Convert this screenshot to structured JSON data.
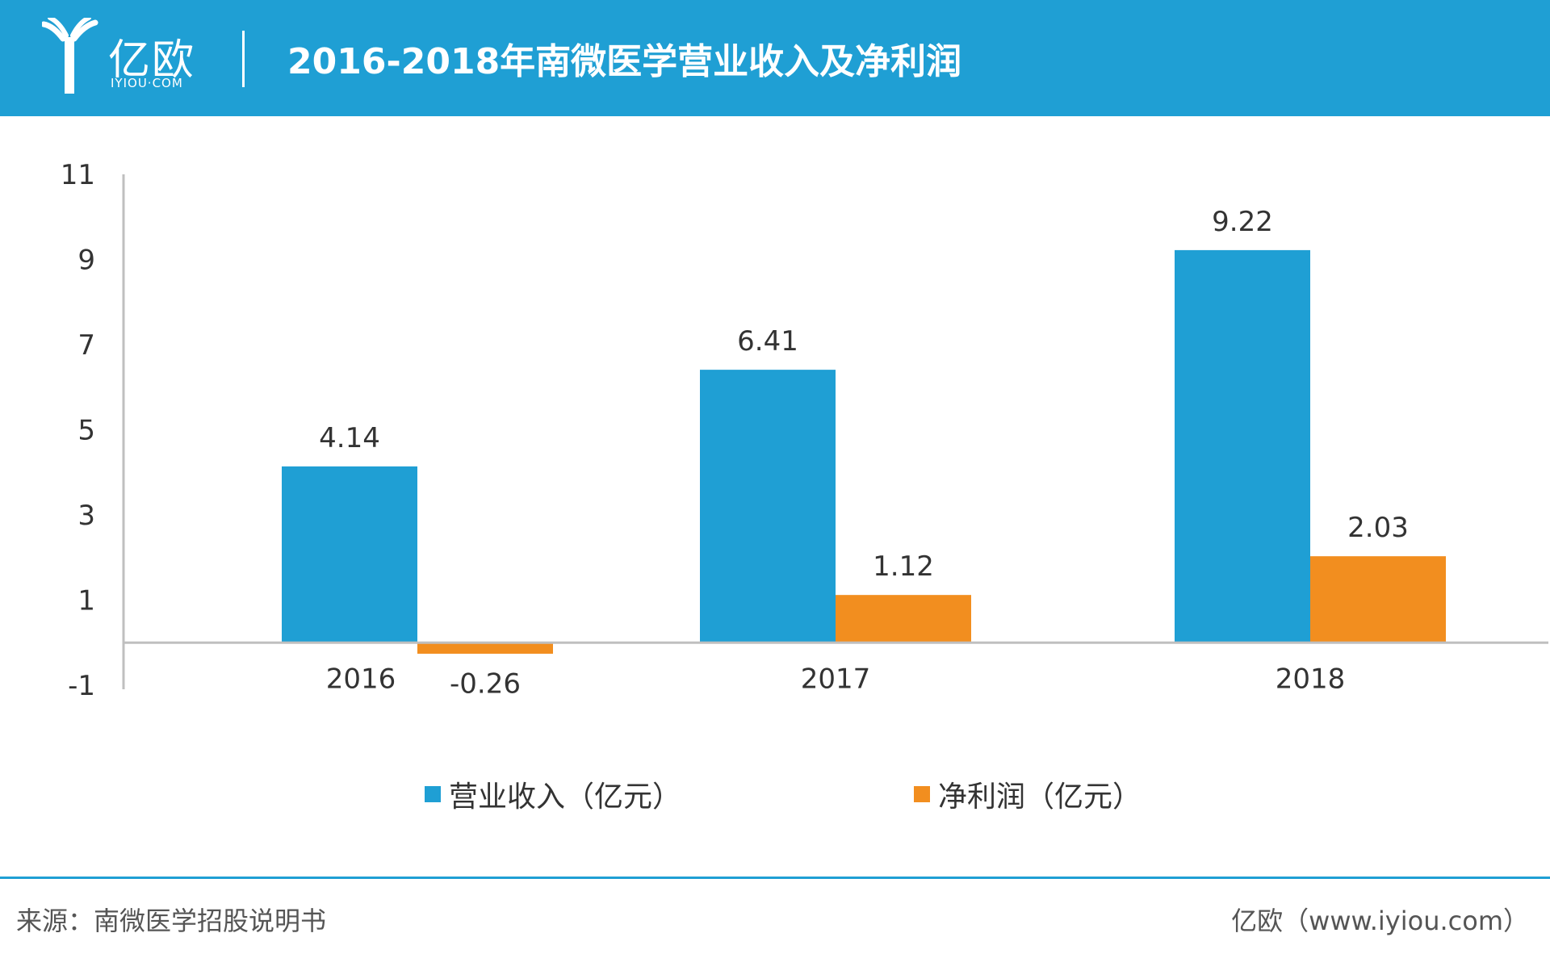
{
  "header": {
    "logo_cn": "亿欧",
    "logo_en": "IYIOU·COM",
    "title": "2016-2018年南微医学营业收入及净利润"
  },
  "colors": {
    "brand": "#1f9fd4",
    "revenue": "#1f9fd4",
    "profit": "#f28e1f",
    "axis": "#bfbfbf"
  },
  "chart_data": {
    "type": "bar",
    "categories": [
      "2016",
      "2017",
      "2018"
    ],
    "series": [
      {
        "name": "营业收入（亿元）",
        "values": [
          4.14,
          6.41,
          9.22
        ],
        "labels": [
          "4.14",
          "6.41",
          "9.22"
        ]
      },
      {
        "name": "净利润（亿元）",
        "values": [
          -0.26,
          1.12,
          2.03
        ],
        "labels": [
          "-0.26",
          "1.12",
          "2.03"
        ]
      }
    ],
    "yticks": [
      "11",
      "9",
      "7",
      "5",
      "3",
      "1",
      "-1"
    ],
    "ylim": [
      -1,
      11
    ],
    "legend": "bottom"
  },
  "footer": {
    "source": "来源：南微医学招股说明书",
    "credit": "亿欧（www.iyiou.com）"
  }
}
